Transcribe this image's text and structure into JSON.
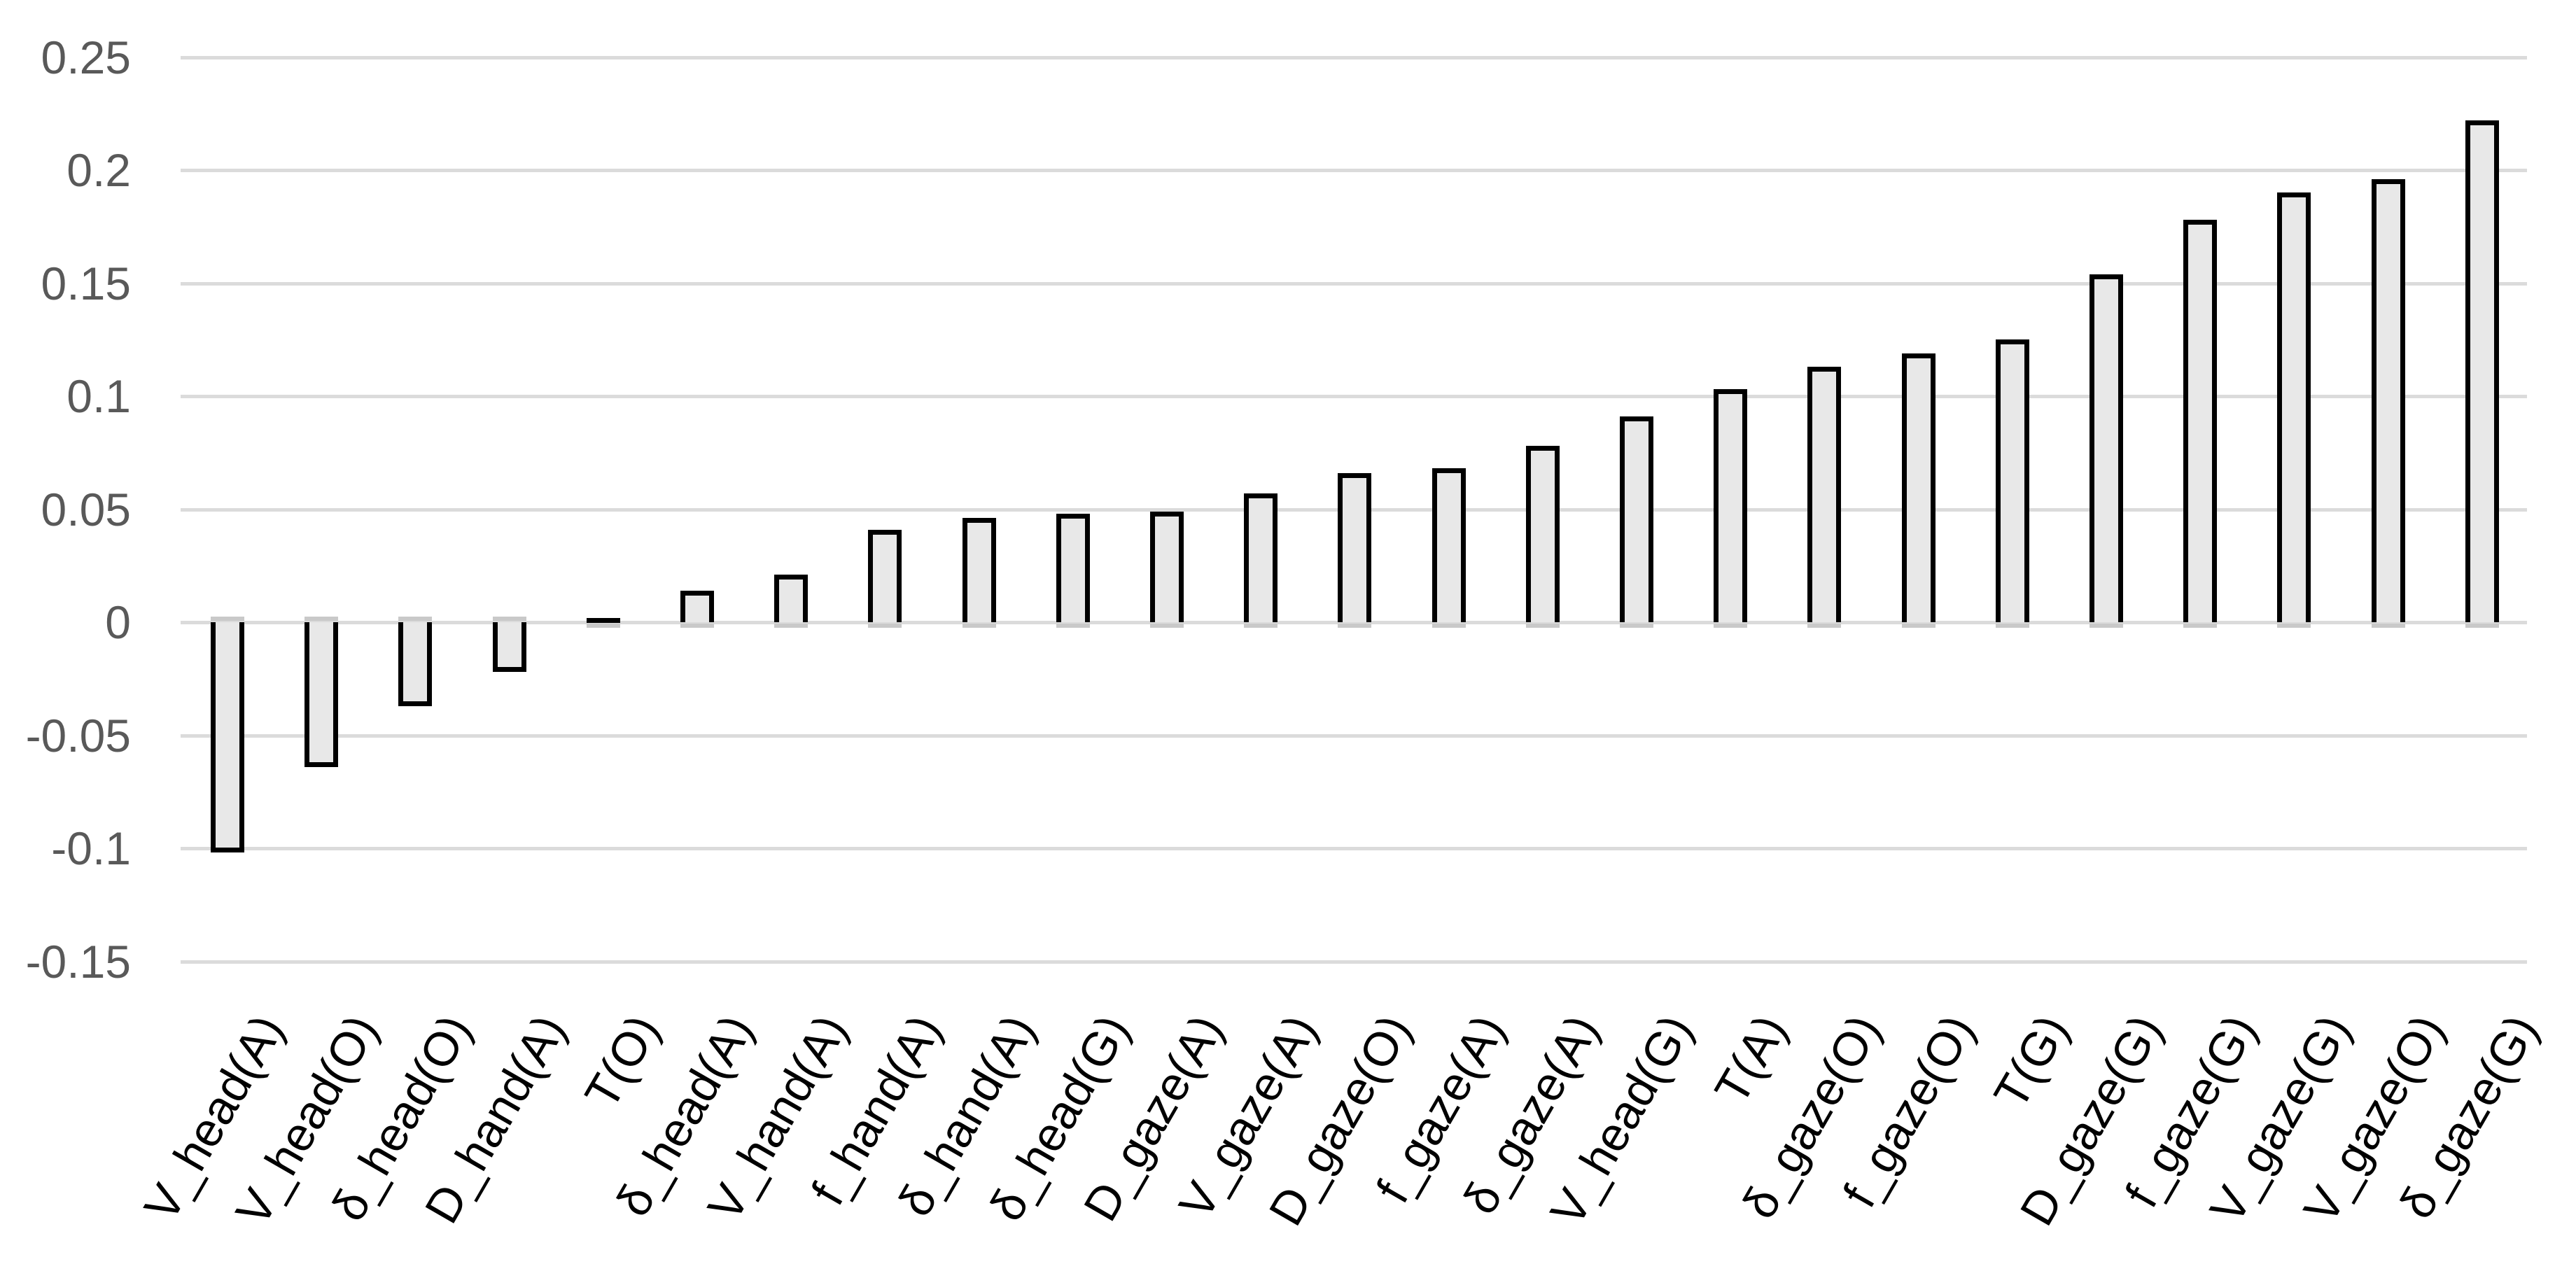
{
  "chart_data": {
    "type": "bar",
    "title": "",
    "xlabel": "",
    "ylabel": "",
    "categories": [
      "V_head(A)",
      "V_head(O)",
      "δ_head(O)",
      "D_hand(A)",
      "T(O)",
      "δ_head(A)",
      "V_hand(A)",
      "f_hand(A)",
      "δ_hand(A)",
      "δ_head(G)",
      "D_gaze(A)",
      "V_gaze(A)",
      "D_gaze(O)",
      "f_gaze(A)",
      "δ_gaze(A)",
      "V_head(G)",
      "T(A)",
      "δ_gaze(O)",
      "f_gaze(O)",
      "T(G)",
      "D_gaze(G)",
      "f_gaze(G)",
      "V_gaze(G)",
      "V_gaze(O)",
      "δ_gaze(G)"
    ],
    "values": [
      -0.102,
      -0.064,
      -0.037,
      -0.022,
      0.002,
      0.014,
      0.021,
      0.041,
      0.046,
      0.048,
      0.049,
      0.057,
      0.066,
      0.068,
      0.078,
      0.091,
      0.103,
      0.113,
      0.119,
      0.125,
      0.154,
      0.178,
      0.19,
      0.196,
      0.222
    ],
    "ylim": [
      -0.15,
      0.25
    ],
    "y_ticks": [
      0.25,
      0.2,
      0.15,
      0.1,
      0.05,
      0,
      -0.05,
      -0.1,
      -0.15
    ],
    "y_tick_labels": [
      "0.25",
      "0.2",
      "0.15",
      "0.1",
      "0.05",
      "0",
      "-0.05",
      "-0.1",
      "-0.15"
    ],
    "grid": true,
    "legend": false,
    "colors": {
      "bar_fill": "#E8E8E8",
      "bar_border": "#000000",
      "bar_shadow": "#C9C9C9",
      "gridline": "#DBDBDB",
      "y_tick_label": "#595959",
      "category_label": "#000000",
      "background": "#FFFFFF"
    }
  }
}
